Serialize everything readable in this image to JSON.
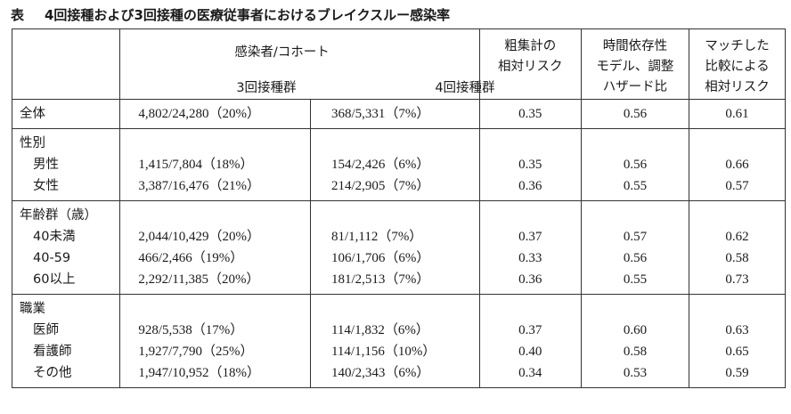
{
  "caption": {
    "tag": "表",
    "title": "4回接種および3回接種の医療従事者におけるブレイクスルー感染率"
  },
  "headers": {
    "cohort": "感染者/コホート",
    "group3": "3回接種群",
    "group4": "4回接種群",
    "crude": [
      "粗集計の",
      "相対リスク"
    ],
    "adjusted": [
      "時間依存性",
      "モデル、調整",
      "ハザード比"
    ],
    "matched": [
      "マッチした",
      "比較による",
      "相対リスク"
    ]
  },
  "sections": [
    {
      "title": "全体",
      "rows": [
        {
          "label": "",
          "g3": "4,802/24,280（20%）",
          "g4": "368/5,331（7%）",
          "crude": "0.35",
          "adj": "0.56",
          "match": "0.61"
        }
      ]
    },
    {
      "title": "性別",
      "rows": [
        {
          "label": "男性",
          "g3": "1,415/7,804（18%）",
          "g4": "154/2,426（6%）",
          "crude": "0.35",
          "adj": "0.56",
          "match": "0.66"
        },
        {
          "label": "女性",
          "g3": "3,387/16,476（21%）",
          "g4": "214/2,905（7%）",
          "crude": "0.36",
          "adj": "0.55",
          "match": "0.57"
        }
      ]
    },
    {
      "title": "年齢群（歳）",
      "rows": [
        {
          "label": "40未満",
          "g3": "2,044/10,429（20%）",
          "g4": "81/1,112（7%）",
          "crude": "0.37",
          "adj": "0.57",
          "match": "0.62"
        },
        {
          "label": "40-59",
          "g3": "466/2,466（19%）",
          "g4": "106/1,706（6%）",
          "crude": "0.33",
          "adj": "0.56",
          "match": "0.58"
        },
        {
          "label": "60以上",
          "g3": "2,292/11,385（20%）",
          "g4": "181/2,513（7%）",
          "crude": "0.36",
          "adj": "0.55",
          "match": "0.73"
        }
      ]
    },
    {
      "title": "職業",
      "rows": [
        {
          "label": "医師",
          "g3": "928/5,538（17%）",
          "g4": "114/1,832（6%）",
          "crude": "0.37",
          "adj": "0.60",
          "match": "0.63"
        },
        {
          "label": "看護師",
          "g3": "1,927/7,790（25%）",
          "g4": "114/1,156（10%）",
          "crude": "0.40",
          "adj": "0.58",
          "match": "0.65"
        },
        {
          "label": "その他",
          "g3": "1,947/10,952（18%）",
          "g4": "140/2,343（6%）",
          "crude": "0.34",
          "adj": "0.53",
          "match": "0.59"
        }
      ]
    }
  ]
}
